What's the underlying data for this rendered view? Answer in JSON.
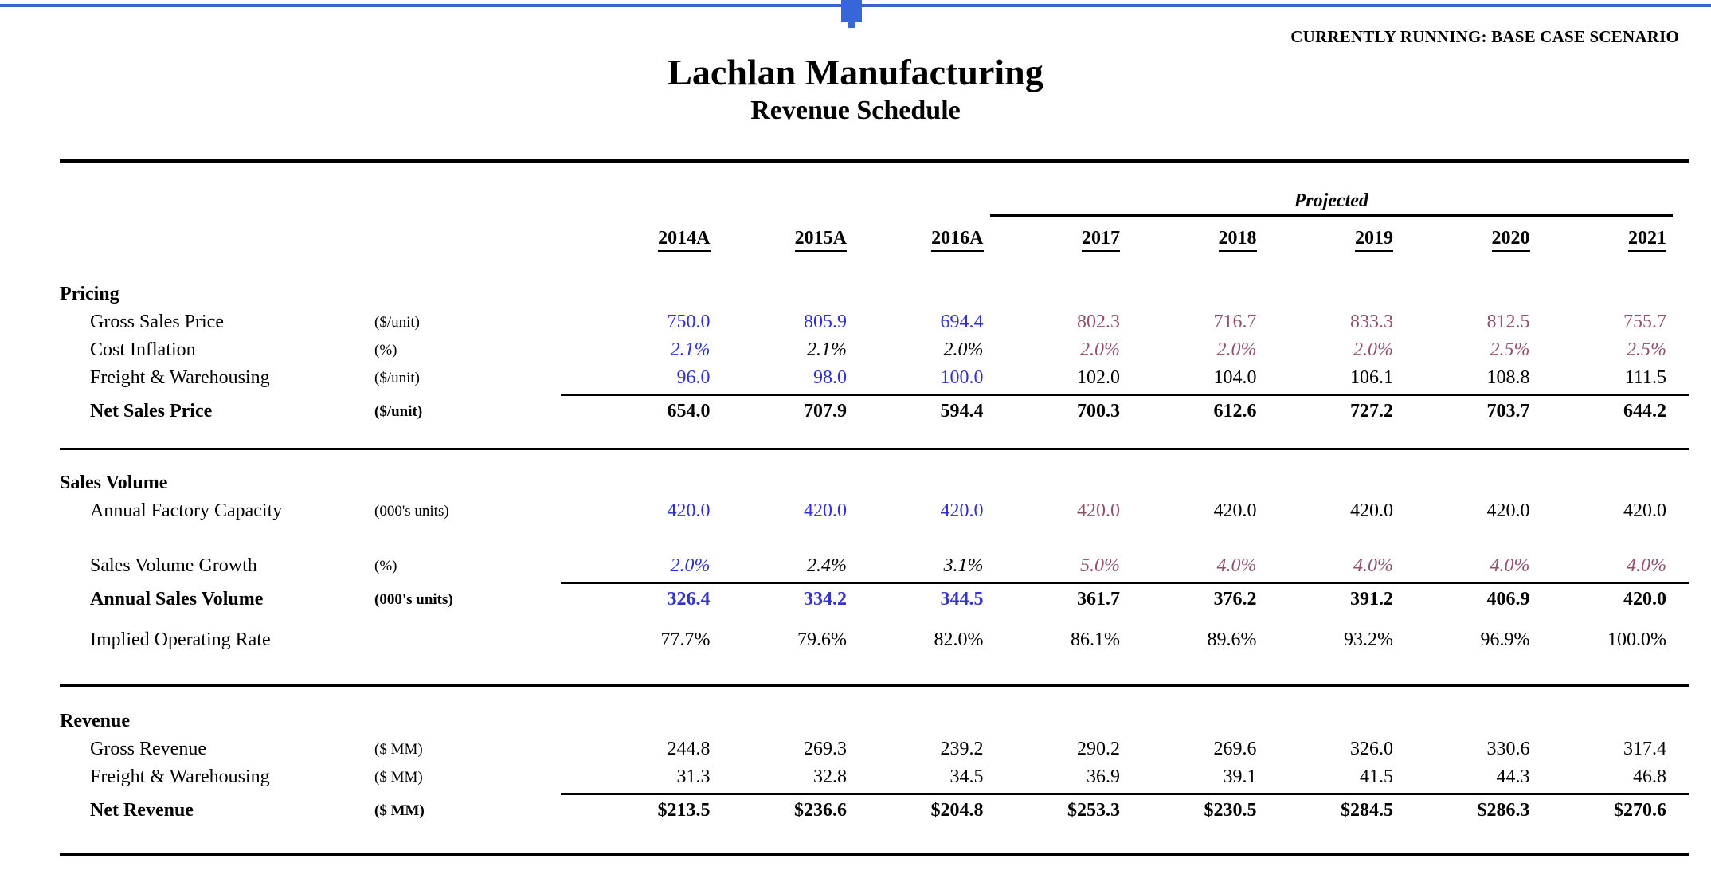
{
  "page": {
    "scenario_banner": "CURRENTLY RUNNING: BASE CASE SCENARIO",
    "title": "Lachlan Manufacturing",
    "subtitle": "Revenue Schedule",
    "projected_label": "Projected"
  },
  "columns": [
    "2014A",
    "2015A",
    "2016A",
    "2017",
    "2018",
    "2019",
    "2020",
    "2021"
  ],
  "colors": {
    "input_blue": "#3232cf",
    "scenario_purple": "#92516b",
    "formula_black": "#000000",
    "accent_blue": "#3b63d2"
  },
  "sections": [
    {
      "title": "Pricing",
      "rows": [
        {
          "label": "Gross Sales Price",
          "unit": "($/unit)",
          "bold": false,
          "italic": false,
          "topline": false,
          "values": [
            "750.0",
            "805.9",
            "694.4",
            "802.3",
            "716.7",
            "833.3",
            "812.5",
            "755.7"
          ],
          "value_colors": [
            "blue",
            "blue",
            "blue",
            "purple",
            "purple",
            "purple",
            "purple",
            "purple"
          ]
        },
        {
          "label": "Cost Inflation",
          "unit": "(%)",
          "bold": false,
          "italic": true,
          "topline": false,
          "values": [
            "2.1%",
            "2.1%",
            "2.0%",
            "2.0%",
            "2.0%",
            "2.0%",
            "2.5%",
            "2.5%"
          ],
          "value_colors": [
            "blue",
            "black",
            "black",
            "purple",
            "purple",
            "purple",
            "purple",
            "purple"
          ]
        },
        {
          "label": "Freight & Warehousing",
          "unit": "($/unit)",
          "bold": false,
          "italic": false,
          "topline": false,
          "values": [
            "96.0",
            "98.0",
            "100.0",
            "102.0",
            "104.0",
            "106.1",
            "108.8",
            "111.5"
          ],
          "value_colors": [
            "blue",
            "blue",
            "blue",
            "black",
            "black",
            "black",
            "black",
            "black"
          ]
        },
        {
          "label": "Net Sales Price",
          "unit": "($/unit)",
          "bold": true,
          "italic": false,
          "topline": true,
          "values": [
            "654.0",
            "707.9",
            "594.4",
            "700.3",
            "612.6",
            "727.2",
            "703.7",
            "644.2"
          ],
          "value_colors": [
            "black",
            "black",
            "black",
            "black",
            "black",
            "black",
            "black",
            "black"
          ]
        }
      ]
    },
    {
      "title": "Sales Volume",
      "rows": [
        {
          "label": "Annual Factory Capacity",
          "unit": "(000's units)",
          "bold": false,
          "italic": false,
          "topline": false,
          "spacer_after": true,
          "values": [
            "420.0",
            "420.0",
            "420.0",
            "420.0",
            "420.0",
            "420.0",
            "420.0",
            "420.0"
          ],
          "value_colors": [
            "blue",
            "blue",
            "blue",
            "purple",
            "black",
            "black",
            "black",
            "black"
          ]
        },
        {
          "label": "Sales Volume Growth",
          "unit": "(%)",
          "bold": false,
          "italic": true,
          "topline": false,
          "values": [
            "2.0%",
            "2.4%",
            "3.1%",
            "5.0%",
            "4.0%",
            "4.0%",
            "4.0%",
            "4.0%"
          ],
          "value_colors": [
            "blue",
            "black",
            "black",
            "purple",
            "purple",
            "purple",
            "purple",
            "purple"
          ]
        },
        {
          "label": "Annual Sales Volume",
          "unit": "(000's units)",
          "bold": true,
          "italic": false,
          "topline": true,
          "values": [
            "326.4",
            "334.2",
            "344.5",
            "361.7",
            "376.2",
            "391.2",
            "406.9",
            "420.0"
          ],
          "value_colors": [
            "blue",
            "blue",
            "blue",
            "black",
            "black",
            "black",
            "black",
            "black"
          ]
        },
        {
          "label": "Implied Operating Rate",
          "unit": "",
          "bold": false,
          "italic": false,
          "topline": false,
          "spacer_before": true,
          "values": [
            "77.7%",
            "79.6%",
            "82.0%",
            "86.1%",
            "89.6%",
            "93.2%",
            "96.9%",
            "100.0%"
          ],
          "value_colors": [
            "black",
            "black",
            "black",
            "black",
            "black",
            "black",
            "black",
            "black"
          ]
        }
      ]
    },
    {
      "title": "Revenue",
      "rows": [
        {
          "label": "Gross Revenue",
          "unit": "($ MM)",
          "bold": false,
          "italic": false,
          "topline": false,
          "values": [
            "244.8",
            "269.3",
            "239.2",
            "290.2",
            "269.6",
            "326.0",
            "330.6",
            "317.4"
          ],
          "value_colors": [
            "black",
            "black",
            "black",
            "black",
            "black",
            "black",
            "black",
            "black"
          ]
        },
        {
          "label": "Freight & Warehousing",
          "unit": "($ MM)",
          "bold": false,
          "italic": false,
          "topline": false,
          "values": [
            "31.3",
            "32.8",
            "34.5",
            "36.9",
            "39.1",
            "41.5",
            "44.3",
            "46.8"
          ],
          "value_colors": [
            "black",
            "black",
            "black",
            "black",
            "black",
            "black",
            "black",
            "black"
          ]
        },
        {
          "label": "Net Revenue",
          "unit": "($ MM)",
          "bold": true,
          "italic": false,
          "topline": true,
          "values": [
            "$213.5",
            "$236.6",
            "$204.8",
            "$253.3",
            "$230.5",
            "$284.5",
            "$286.3",
            "$270.6"
          ],
          "value_colors": [
            "black",
            "black",
            "black",
            "black",
            "black",
            "black",
            "black",
            "black"
          ]
        }
      ]
    }
  ]
}
